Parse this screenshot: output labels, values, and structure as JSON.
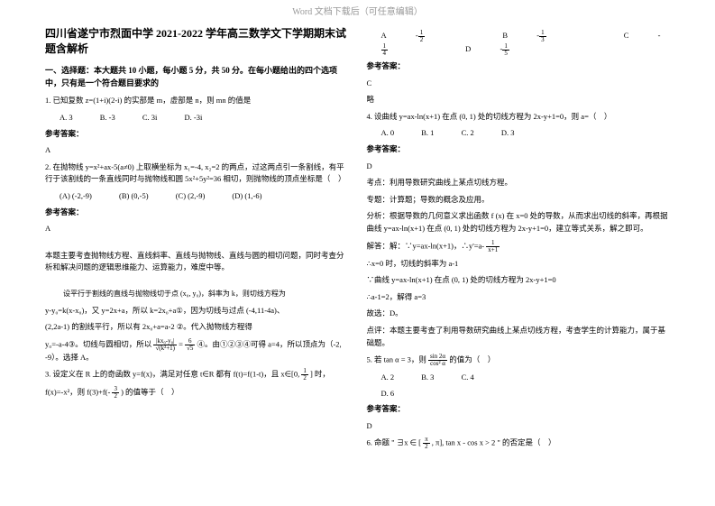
{
  "header": "Word 文档下载后（可任意编辑）",
  "title": "四川省遂宁市烈面中学 2021-2022 学年高三数学文下学期期末试题含解析",
  "section1": "一、选择题：本大题共 10 小题，每小题 5 分，共 50 分。在每小题给出的四个选项中，只有是一个符合题目要求的",
  "left": {
    "q1": "1. 已知复数 z=(1+i)(2-i) 的实部是 m，虚部是 n，则 mn 的值是",
    "q1opts": [
      "A. 3",
      "B. -3",
      "C. 3i",
      "D. -3i"
    ],
    "ans": "参考答案：",
    "ansA": "A",
    "q2": "2. 在抛物线 y=x²+ax-5(a≠0) 上取横坐标为 x₁=-4, x₂=2 的两点，过这两点引一条割线，有平行于该割线的一条直线同时与抛物线和圆 5x²+5y²=36 相切，则抛物线的顶点坐标是（　）",
    "q2opts": [
      "(A) (-2,-9)",
      "(B) (0,-5)",
      "(C) (2,-9)",
      "(D) (1,-6)"
    ],
    "ans2": "参考答案：",
    "ans2A": "A",
    "explain1": "本题主要考查抛物线方程、直线斜率、直线与抛物线、直线与圆的相切问题，同时考查分析和解决问题的逻辑思维能力、运算能力，难度中等。",
    "explain2": "设平行于割线的直线与抛物线切于点 (x₀, y₀)，斜率为 k，则切线方程为",
    "explain3": "y-y₀=k(x-x₀)，又 y=2x+a，所以 k=2x₀+a①，因为切线与过点 (-4,11-4a)、",
    "explain4": "(2,2a-1) 的割线平行，所以有 2x₀+a=a-2 ②。代入抛物线方程得",
    "explain5": "y₀=-a-4③。切线与圆相切，所以",
    "explain6": "④。由①②③④可得 a=4，所以顶点为（-2, -9）。选择 A。",
    "sqrt": "|kx₀-y₀|",
    "sqrtd": "√(k²+1)",
    "eq": "6",
    "eqd": "√5",
    "q3": "3. 设定义在 R 上的奇函数 y=f(x)，满足对任意 t∈R 都有 f(t)=f(1-t)，且 x∈[0,",
    "q3b": "] 时，",
    "q3c": "f(x)=-x²，则 f(3)+f(-",
    "q3d": ") 的值等于（　）",
    "half": "1",
    "halfd": "2",
    "threehalf": "3",
    "threehalfd": "2"
  },
  "right": {
    "optsA": "A",
    "optsB": "B",
    "optsC": "C",
    "optsD": "D",
    "f1n": "1",
    "f1d": "2",
    "f2n": "1",
    "f2d": "3",
    "f3n": "1",
    "f3d": "4",
    "f4n": "1",
    "f4d": "5",
    "ans": "参考答案：",
    "ansC": "C",
    "略": "略",
    "q4": "4. 设曲线 y=ax-ln(x+1) 在点 (0, 1) 处的切线方程为 2x-y+1=0，则 a=（　）",
    "q4opts": [
      "A. 0",
      "B. 1",
      "C. 2",
      "D. 3"
    ],
    "ans4": "参考答案：",
    "ans4D": "D",
    "kd": "考点：利用导数研究曲线上某点切线方程。",
    "zt": "专题：计算题；导数的概念及应用。",
    "fx": "分析：根据导数的几何意义求出函数 f (x) 在 x=0 处的导数，从而求出切线的斜率，再根据曲线 y=ax-ln(x+1) 在点 (0, 1) 处的切线方程为 2x-y+1=0，建立等式关系，解之即可。",
    "jie": "解答：解：∵y=ax-ln(x+1)，∴y'=a-",
    "jiefrac": "1",
    "jiefracd": "x+1",
    "jie2": "∴x=0 时，切线的斜率为 a-1",
    "jie3": "∵曲线 y=ax-ln(x+1) 在点 (0, 1) 处的切线方程为 2x-y+1=0",
    "jie4": "∴a-1=2，解得 a=3",
    "jie5": "故选：D。",
    "dp": "点评：本题主要考查了利用导数研究曲线上某点切线方程，考查学生的计算能力，属于基础题。",
    "q5a": "5. 若 tan α = 3，则",
    "q5b": "sin 2α",
    "q5c": "cos² α",
    "q5d": "的值为（　）",
    "q5opts": [
      "A. 2",
      "B. 3",
      "C. 4",
      "D. 6"
    ],
    "ans5": "参考答案：",
    "ans5D": "D",
    "q6a": "6. 命题 \"",
    "q6b": "∃x ∈",
    "q6c": "[",
    "q6d": "π",
    "q6e": "2",
    "q6f": ", π], tan x - cos x > 2",
    "q6g": "\" 的否定是（　）"
  }
}
